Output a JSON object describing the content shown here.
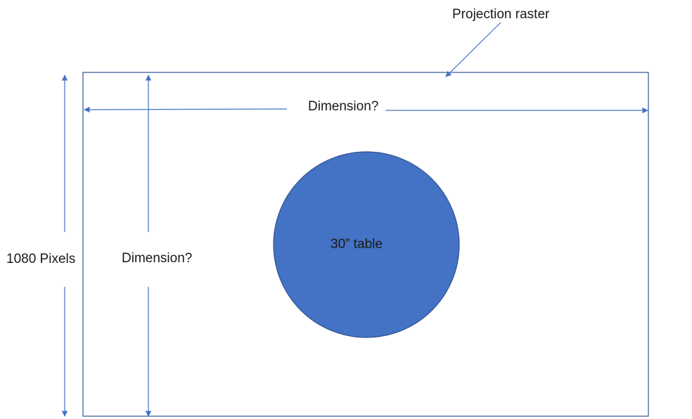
{
  "labels": {
    "projection": "Projection raster",
    "width_dimension": "Dimension?",
    "height_dimension": "Dimension?",
    "pixels": "1080 Pixels",
    "table": "30” table"
  },
  "colors": {
    "accent": "#4472c4",
    "frame": "#2f5597",
    "table_stroke": "#2f528f",
    "text": "#1a1a1a"
  }
}
